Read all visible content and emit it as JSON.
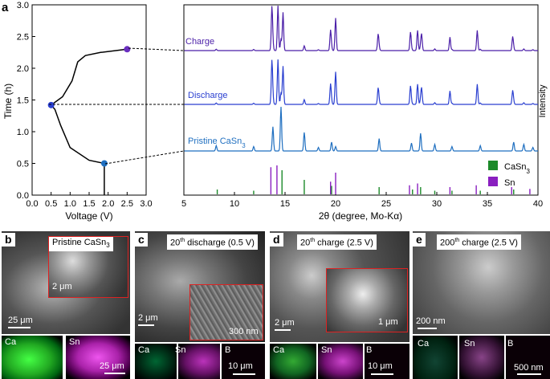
{
  "panel_a": {
    "label": "a",
    "left_plot": {
      "ylabel": "Time (h)",
      "xlabel": "Voltage (V)",
      "yticks": [
        "0.0",
        "0.5",
        "1.0",
        "1.5",
        "2.0",
        "2.5",
        "3.0"
      ],
      "xticks": [
        "0.0",
        "0.5",
        "1.0",
        "1.5",
        "2.0",
        "2.5",
        "3.0"
      ]
    },
    "right_plot": {
      "xlabel": "2θ (degree, Mo-Kα)",
      "ylabel": "Intensity",
      "xticks": [
        "5",
        "10",
        "15",
        "20",
        "25",
        "30",
        "35",
        "40"
      ],
      "traces": [
        {
          "label": "Charge",
          "color": "#4b1fa8"
        },
        {
          "label": "Discharge",
          "color": "#2a3fd0"
        },
        {
          "label": "Pristine CaSn3",
          "color": "#1f6fc0"
        }
      ],
      "legend": [
        {
          "name": "CaSn3",
          "color": "#1c8a2a"
        },
        {
          "name": "Sn",
          "color": "#8a1fc0"
        }
      ]
    }
  },
  "chart_data": [
    {
      "type": "line",
      "xlabel": "Voltage (V)",
      "ylabel": "Time (h)",
      "xlim": [
        0,
        3
      ],
      "ylim": [
        0,
        3
      ],
      "series": [
        {
          "voltage": [
            1.9,
            1.9,
            1.5,
            1.0,
            0.75,
            0.6,
            0.5
          ],
          "time": [
            0.0,
            0.5,
            0.55,
            0.75,
            1.1,
            1.35,
            1.42
          ]
        },
        {
          "voltage": [
            0.5,
            0.8,
            1.05,
            1.2,
            1.4,
            1.8,
            2.5
          ],
          "time": [
            1.42,
            1.55,
            1.8,
            2.1,
            2.2,
            2.25,
            2.3
          ]
        }
      ],
      "markers": [
        {
          "voltage": 1.9,
          "time": 0.5,
          "color": "#1f6fc0"
        },
        {
          "voltage": 0.5,
          "time": 1.42,
          "color": "#2a3fd0"
        },
        {
          "voltage": 2.5,
          "time": 2.3,
          "color": "#6a2fc0"
        }
      ]
    },
    {
      "type": "line",
      "xlabel": "2θ (degree, Mo-Kα)",
      "ylabel": "Intensity",
      "xlim": [
        5,
        40
      ],
      "peaks": [
        {
          "x": 8.2,
          "h": 0.12
        },
        {
          "x": 11.9,
          "h": 0.1
        },
        {
          "x": 13.8,
          "h": 0.55
        },
        {
          "x": 14.6,
          "h": 1.0
        },
        {
          "x": 16.9,
          "h": 0.42
        },
        {
          "x": 18.3,
          "h": 0.08
        },
        {
          "x": 19.6,
          "h": 0.2
        },
        {
          "x": 20.0,
          "h": 0.1
        },
        {
          "x": 24.3,
          "h": 0.28
        },
        {
          "x": 27.5,
          "h": 0.18
        },
        {
          "x": 28.4,
          "h": 0.4
        },
        {
          "x": 29.8,
          "h": 0.15
        },
        {
          "x": 31.5,
          "h": 0.1
        },
        {
          "x": 34.3,
          "h": 0.12
        },
        {
          "x": 37.6,
          "h": 0.2
        },
        {
          "x": 38.6,
          "h": 0.15
        },
        {
          "x": 39.5,
          "h": 0.08
        }
      ],
      "sn_peaks": [
        {
          "x": 13.7,
          "h": 0.95
        },
        {
          "x": 14.3,
          "h": 1.0
        },
        {
          "x": 14.8,
          "h": 0.85
        },
        {
          "x": 19.5,
          "h": 0.45
        },
        {
          "x": 20.0,
          "h": 0.7
        },
        {
          "x": 24.2,
          "h": 0.35
        },
        {
          "x": 27.4,
          "h": 0.4
        },
        {
          "x": 28.1,
          "h": 0.45
        },
        {
          "x": 28.5,
          "h": 0.35
        },
        {
          "x": 31.3,
          "h": 0.3
        },
        {
          "x": 34.0,
          "h": 0.45
        },
        {
          "x": 37.5,
          "h": 0.3
        }
      ],
      "ref_casn3": [
        {
          "x": 8.3,
          "h": 0.2
        },
        {
          "x": 11.9,
          "h": 0.15
        },
        {
          "x": 14.7,
          "h": 1.0
        },
        {
          "x": 16.9,
          "h": 0.6
        },
        {
          "x": 19.6,
          "h": 0.35
        },
        {
          "x": 24.3,
          "h": 0.3
        },
        {
          "x": 27.6,
          "h": 0.2
        },
        {
          "x": 28.4,
          "h": 0.3
        },
        {
          "x": 29.8,
          "h": 0.15
        },
        {
          "x": 31.5,
          "h": 0.15
        },
        {
          "x": 34.3,
          "h": 0.15
        },
        {
          "x": 37.6,
          "h": 0.2
        }
      ],
      "ref_sn": [
        {
          "x": 13.6,
          "h": 0.75
        },
        {
          "x": 14.2,
          "h": 0.8
        },
        {
          "x": 19.5,
          "h": 0.35
        },
        {
          "x": 20.0,
          "h": 0.6
        },
        {
          "x": 27.3,
          "h": 0.25
        },
        {
          "x": 28.1,
          "h": 0.3
        },
        {
          "x": 31.3,
          "h": 0.2
        },
        {
          "x": 33.9,
          "h": 0.25
        },
        {
          "x": 37.4,
          "h": 0.2
        },
        {
          "x": 39.2,
          "h": 0.15
        }
      ]
    }
  ],
  "panels": {
    "b": {
      "label": "b",
      "caption_main": "Pristine CaSn",
      "caption_sub": "3",
      "inset_scale": "2 μm",
      "main_scale": "25 μm",
      "map_scale": "25 μm",
      "maps": [
        "Ca",
        "Sn"
      ]
    },
    "c": {
      "label": "c",
      "caption_pre": "20",
      "caption_sup": "th",
      "caption_post": " discharge (0.5 V)",
      "main_scale": "2 μm",
      "inset_scale": "300 nm",
      "map_scale": "10 μm",
      "maps": [
        "Ca",
        "Sn",
        "B"
      ]
    },
    "d": {
      "label": "d",
      "caption_pre": "20",
      "caption_sup": "th",
      "caption_post": " charge (2.5 V)",
      "main_scale": "2 μm",
      "inset_scale": "1 μm",
      "map_scale": "10 μm",
      "maps": [
        "Ca",
        "Sn",
        "B"
      ]
    },
    "e": {
      "label": "e",
      "caption_pre": "200",
      "caption_sup": "th",
      "caption_post": " charge (2.5 V)",
      "main_scale": "200 nm",
      "map_scale": "500 nm",
      "maps": [
        "Ca",
        "Sn",
        "B"
      ]
    }
  }
}
